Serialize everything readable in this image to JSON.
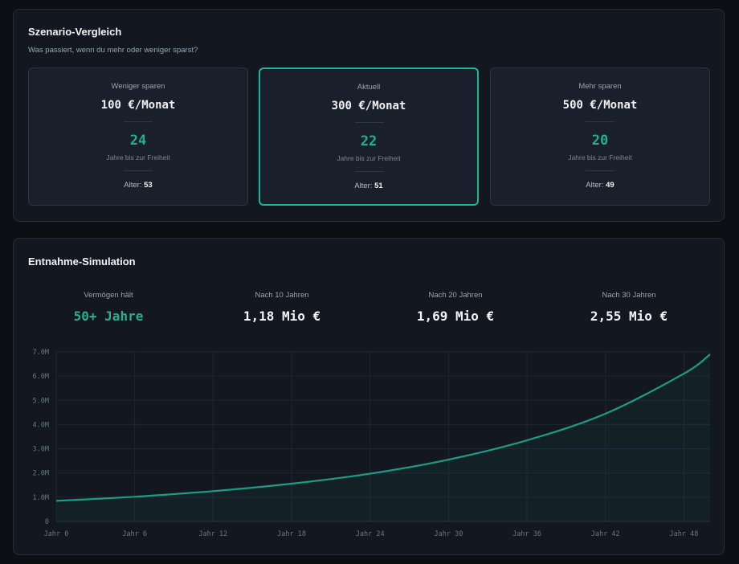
{
  "scenario": {
    "title": "Szenario-Vergleich",
    "subtitle": "Was passiert, wenn du mehr oder weniger sparst?",
    "cards": [
      {
        "label": "Weniger sparen",
        "amount": "100 €/Monat",
        "years": "24",
        "years_label": "Jahre bis zur Freiheit",
        "age_label": "Alter:",
        "age": "53",
        "active": false
      },
      {
        "label": "Aktuell",
        "amount": "300 €/Monat",
        "years": "22",
        "years_label": "Jahre bis zur Freiheit",
        "age_label": "Alter:",
        "age": "51",
        "active": true
      },
      {
        "label": "Mehr sparen",
        "amount": "500 €/Monat",
        "years": "20",
        "years_label": "Jahre bis zur Freiheit",
        "age_label": "Alter:",
        "age": "49",
        "active": false
      }
    ]
  },
  "simulation": {
    "title": "Entnahme-Simulation",
    "stats": [
      {
        "label": "Vermögen hält",
        "value": "50+ Jahre"
      },
      {
        "label": "Nach 10 Jahren",
        "value": "1,18 Mio €"
      },
      {
        "label": "Nach 20 Jahren",
        "value": "1,69 Mio €"
      },
      {
        "label": "Nach 30 Jahren",
        "value": "2,55 Mio €"
      }
    ]
  },
  "colors": {
    "accent": "#22b08f",
    "line": "#1c9c88",
    "panel": "#131820",
    "card": "#1a202b"
  },
  "chart_data": {
    "type": "area",
    "x": [
      0,
      6,
      12,
      18,
      24,
      30,
      36,
      42,
      48,
      50
    ],
    "values": [
      0.85,
      1.02,
      1.25,
      1.56,
      1.97,
      2.55,
      3.35,
      4.45,
      6.1,
      6.9
    ],
    "x_tick_labels": [
      "Jahr 0",
      "Jahr 6",
      "Jahr 12",
      "Jahr 18",
      "Jahr 24",
      "Jahr 30",
      "Jahr 36",
      "Jahr 42",
      "Jahr 48"
    ],
    "x_ticks": [
      0,
      6,
      12,
      18,
      24,
      30,
      36,
      42,
      48
    ],
    "y_ticks": [
      0,
      1,
      2,
      3,
      4,
      5,
      6,
      7
    ],
    "y_tick_labels": [
      "0",
      "1.0M",
      "2.0M",
      "3.0M",
      "4.0M",
      "5.0M",
      "6.0M",
      "7.0M"
    ],
    "xlim": [
      0,
      50
    ],
    "ylim": [
      0,
      7
    ],
    "grid": true
  }
}
